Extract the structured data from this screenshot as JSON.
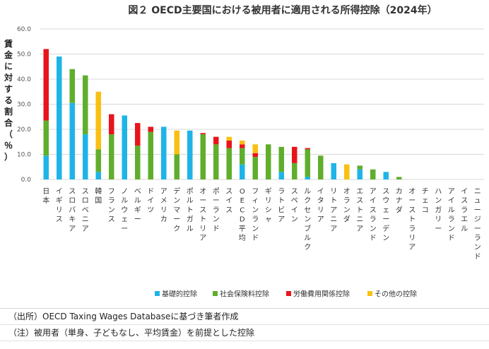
{
  "chart_data": {
    "type": "bar",
    "stacked": true,
    "title": "図２ OECD主要国における被用者に適用される所得控除（2024年）",
    "ylabel": "賃金に対する割合（％）",
    "ylim": [
      0,
      60
    ],
    "yticks": [
      "0.0",
      "10.0",
      "20.0",
      "30.0",
      "40.0",
      "50.0",
      "60.0"
    ],
    "grid": true,
    "legend_position": "bottom",
    "categories": [
      "日本",
      "イギリス",
      "スロバキア",
      "スロベニア",
      "韓国",
      "フランス",
      "ノルウェー",
      "ベルギー",
      "ドイツ",
      "アメリカ",
      "デンマーク",
      "ポルトガル",
      "オーストリア",
      "ポーランド",
      "スイス",
      "OECD平均",
      "フィンランド",
      "ギリシャ",
      "ラトビア",
      "スペイン",
      "ルクセンブルク",
      "イタリア",
      "リトアニア",
      "オランダ",
      "エストニア",
      "アイスランド",
      "スウェーデン",
      "カナダ",
      "オーストラリア",
      "チェコ",
      "ハンガリー",
      "アイルランド",
      "イスラエル",
      "ニュージーランド"
    ],
    "series": [
      {
        "name": "基礎的控除",
        "color": "#1fb4e8",
        "values": [
          9.5,
          49,
          30.5,
          18,
          3,
          0,
          25.5,
          0,
          0,
          21,
          0,
          19.5,
          0,
          0,
          0,
          6,
          0,
          0,
          3,
          0,
          1,
          0,
          6.5,
          0,
          4,
          0,
          3,
          0,
          0,
          0,
          0,
          0,
          0,
          0
        ]
      },
      {
        "name": "社会保険料控除",
        "color": "#5fae2c",
        "values": [
          14,
          0,
          13.5,
          23.5,
          9,
          18,
          0,
          13.5,
          19,
          0,
          10,
          0,
          18,
          14,
          12.5,
          6.5,
          9,
          14,
          10,
          6.5,
          11,
          9.5,
          0,
          0,
          1.5,
          4,
          0,
          1,
          0,
          0,
          0,
          0,
          0,
          0
        ]
      },
      {
        "name": "労働費用関係控除",
        "color": "#e8141c",
        "values": [
          28.5,
          0,
          0,
          0,
          0,
          8,
          0,
          9,
          2,
          0,
          0,
          0,
          0.5,
          3,
          3,
          1.5,
          1.5,
          0,
          0,
          6.5,
          0.5,
          0,
          0,
          0,
          0,
          0,
          0,
          0,
          0,
          0,
          0,
          0,
          0,
          0
        ]
      },
      {
        "name": "その他の控除",
        "color": "#f9bf12",
        "values": [
          0,
          0,
          0,
          0,
          23,
          0,
          0,
          0,
          0,
          0,
          9.5,
          0,
          0,
          0,
          1.5,
          1.5,
          3.5,
          0,
          0,
          0,
          0,
          0,
          0,
          6,
          0,
          0,
          0,
          0,
          0,
          0,
          0,
          0,
          0,
          0
        ]
      }
    ]
  },
  "notes": {
    "source": "（出所）OECD Taxing Wages Databaseに基づき筆者作成",
    "note": "（注）被用者（単身、子どもなし、平均賃金）を前提とした控除"
  }
}
